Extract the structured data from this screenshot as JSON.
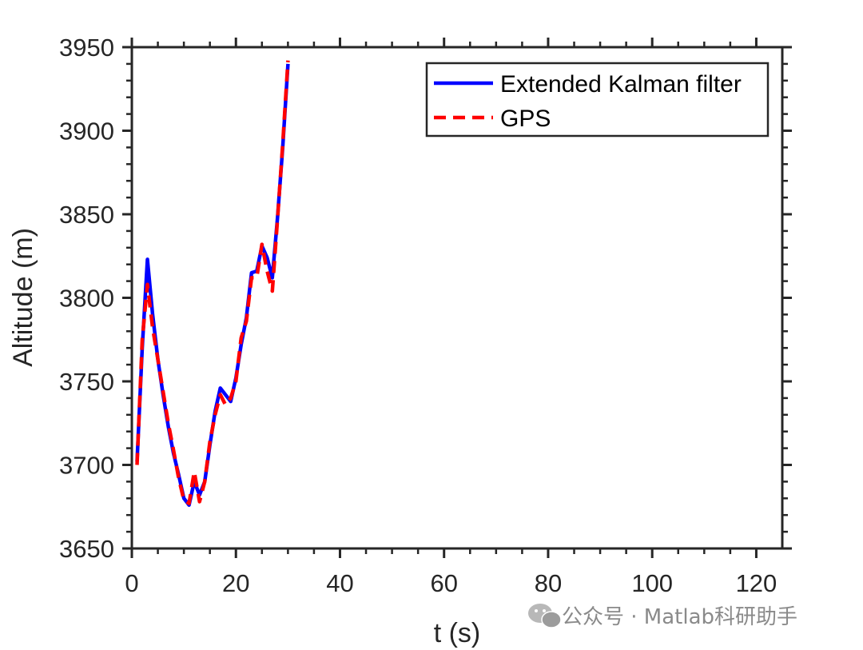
{
  "chart_data": {
    "type": "line",
    "title": "",
    "xlabel": "t (s)",
    "ylabel": "Altitude (m)",
    "xlim": [
      0,
      125
    ],
    "ylim": [
      3650,
      3950
    ],
    "xticks": [
      0,
      20,
      40,
      60,
      80,
      100,
      120
    ],
    "yticks": [
      3650,
      3700,
      3750,
      3800,
      3850,
      3900,
      3950
    ],
    "grid": false,
    "box": true,
    "legend_position": "top-right",
    "series": [
      {
        "name": "Extended Kalman filter",
        "color": "#0000ff",
        "style": "solid",
        "x": [
          1,
          2,
          3,
          4,
          5,
          6,
          7,
          8,
          9,
          10,
          11,
          12,
          13,
          14,
          15,
          16,
          17,
          18,
          19,
          20,
          21,
          22,
          23,
          24,
          25,
          26,
          27,
          28,
          29,
          30
        ],
        "y": [
          3702,
          3770,
          3823,
          3790,
          3763,
          3742,
          3723,
          3707,
          3694,
          3680,
          3676,
          3690,
          3682,
          3690,
          3712,
          3732,
          3746,
          3742,
          3738,
          3752,
          3772,
          3788,
          3815,
          3816,
          3831,
          3824,
          3812,
          3848,
          3890,
          3940
        ]
      },
      {
        "name": "GPS",
        "color": "#ff0000",
        "style": "dashed",
        "x": [
          1,
          2,
          3,
          4,
          5,
          6,
          7,
          8,
          9,
          10,
          11,
          12,
          13,
          14,
          15,
          16,
          17,
          18,
          19,
          20,
          21,
          22,
          23,
          24,
          25,
          26,
          27,
          28,
          29,
          30
        ],
        "y": [
          3700,
          3775,
          3808,
          3782,
          3763,
          3744,
          3725,
          3709,
          3692,
          3679,
          3677,
          3696,
          3678,
          3690,
          3714,
          3730,
          3742,
          3736,
          3740,
          3750,
          3776,
          3786,
          3812,
          3812,
          3832,
          3816,
          3804,
          3847,
          3892,
          3942
        ]
      }
    ]
  },
  "watermark": {
    "icon": "wechat-icon",
    "text": "公众号 · Matlab科研助手"
  }
}
